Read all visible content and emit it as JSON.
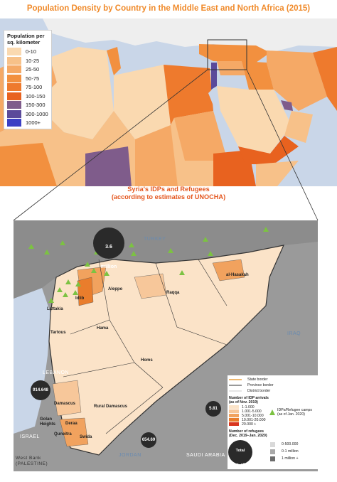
{
  "title": "Population Density by Country in the Middle East and North Africa (2015)",
  "legend": {
    "title_line1": "Population per",
    "title_line2": "sq. kilometer",
    "items": [
      {
        "label": "0-10",
        "color": "#fad9b0"
      },
      {
        "label": "10-25",
        "color": "#f7c189"
      },
      {
        "label": "25-50",
        "color": "#f5a966"
      },
      {
        "label": "50-75",
        "color": "#f2903f"
      },
      {
        "label": "75-100",
        "color": "#ee7a2d"
      },
      {
        "label": "100-150",
        "color": "#e8621f"
      },
      {
        "label": "150-300",
        "color": "#7f5c8b"
      },
      {
        "label": "300-1000",
        "color": "#5b4a9a"
      },
      {
        "label": "1000+",
        "color": "#3b3fc4"
      }
    ]
  },
  "inset": {
    "title_line1": "Syria's IDPs and Refugees",
    "title_line2": "(according to estimates of UNOCHA)"
  },
  "countries": {
    "turkey": "TURKEY",
    "iraq": "IRAQ",
    "lebanon": "LEBANON",
    "israel": "ISRAEL",
    "jordan": "JORDAN",
    "saudi": "SAUDI ARABIA",
    "westbank_line1": "West Bank",
    "westbank_line2": "(PALESTINE)"
  },
  "places": {
    "al_hasakah": "al-Hasakah",
    "aleppo": "Aleppo",
    "idlib": "Idlib",
    "raqqa": "Raqqa",
    "lattakia": "Lattakia",
    "tartous": "Tartous",
    "hama": "Hama",
    "homs": "Homs",
    "rural_damascus": "Rural Damascus",
    "damascus": "Damascus",
    "golan_line1": "Golan",
    "golan_line2": "Heights",
    "deraa": "Deraa",
    "quneitra": "Quneitra",
    "swida": "Swida"
  },
  "refugee_circles": {
    "turkey_line1": "3.6",
    "turkey_line2": "million",
    "lebanon": "914.648",
    "iraq": "5.81",
    "jordan": "654.69"
  },
  "syria_legend": {
    "state_border": "State border",
    "province_border": "Province border",
    "district_border": "District border",
    "idp_title_line1": "Number of IDP arrivals",
    "idp_title_line2": "(as of Nov. 2019)",
    "idp_bins": [
      {
        "label": "1-1.000",
        "color": "#fbe3c8"
      },
      {
        "label": "1.001-5.000",
        "color": "#f7c79a"
      },
      {
        "label": "5.001-10.000",
        "color": "#f1a25e"
      },
      {
        "label": "10.001-20.000",
        "color": "#e97d2c"
      },
      {
        "label": "20.000 +",
        "color": "#d9361f"
      }
    ],
    "camps_line1": "IDPs/Refugee camps",
    "camps_line2": "(as of Jan. 2020)",
    "ref_title_line1": "Number of refugees",
    "ref_title_line2": "(Dec. 2019–Jan. 2020)",
    "ref_bins": [
      {
        "label": "0-500.000",
        "color": "#d9d9d9"
      },
      {
        "label": "0-1 million",
        "color": "#a9a9a9"
      },
      {
        "label": "1 million +",
        "color": "#6c6c6c"
      }
    ],
    "total_line1": "Total",
    "total_line2": "n. of",
    "total_line3": "refugees"
  }
}
